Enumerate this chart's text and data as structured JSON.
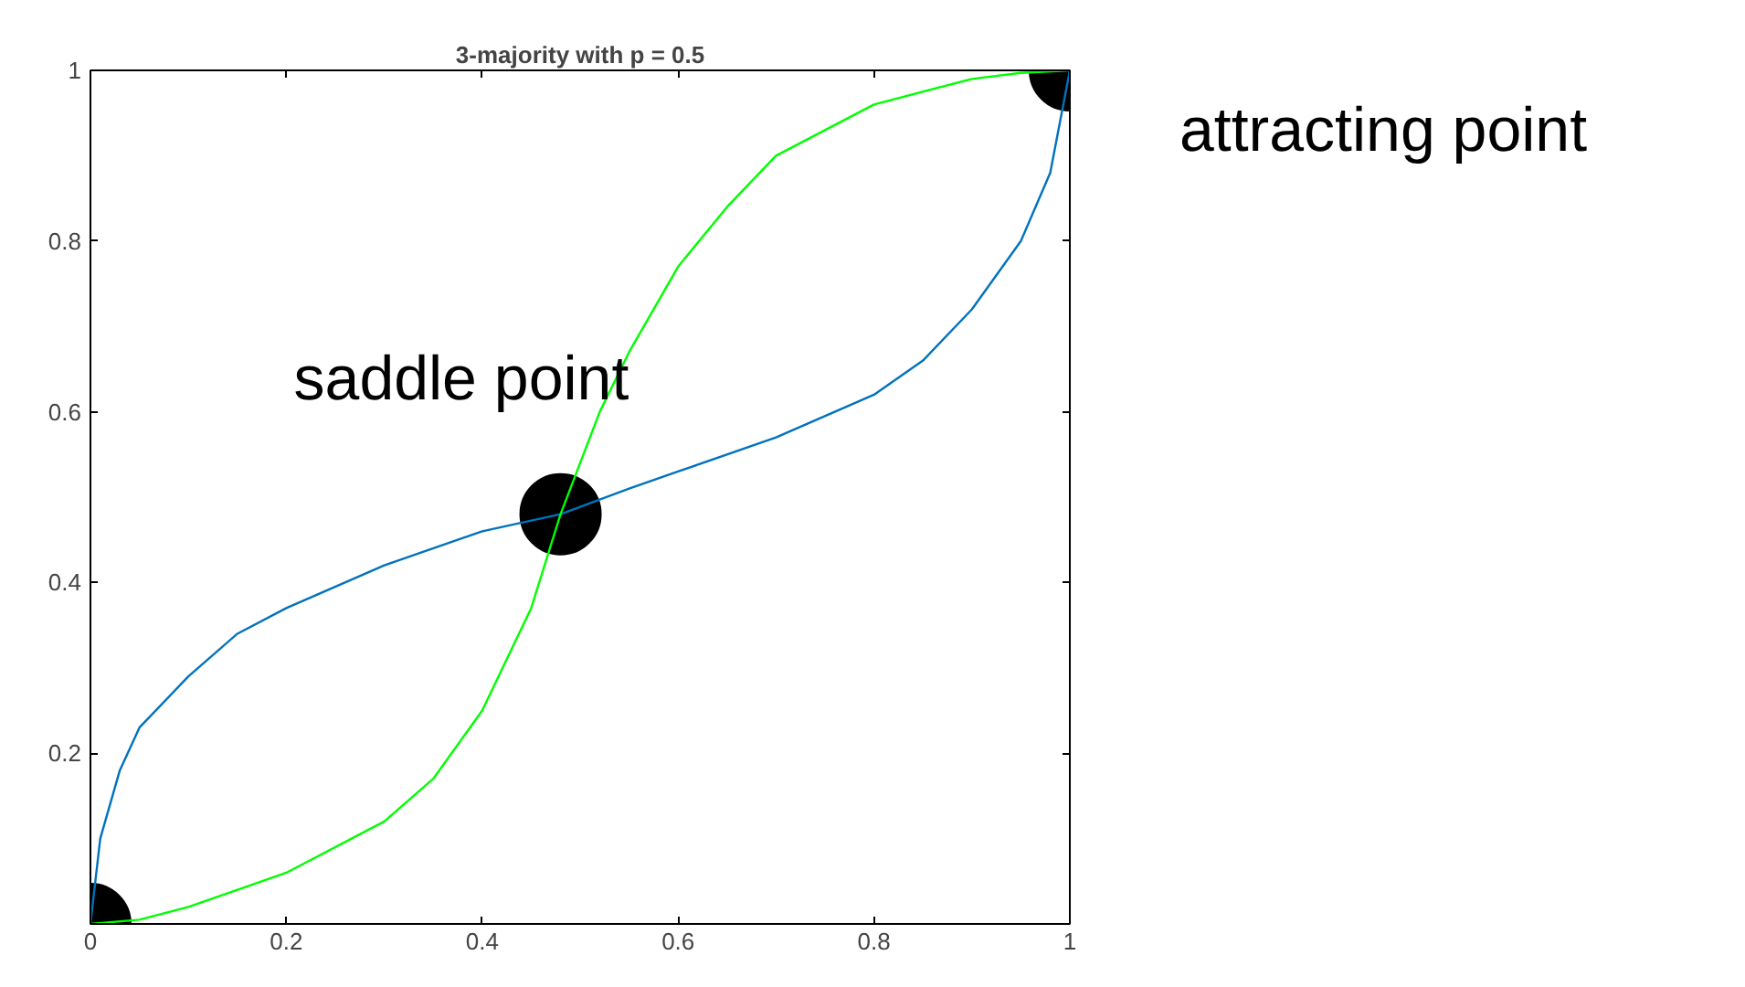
{
  "chart_data": {
    "type": "line",
    "title": "3-majority with p = 0.5",
    "xlim": [
      0,
      1
    ],
    "ylim": [
      0,
      1
    ],
    "xticks": [
      0,
      0.2,
      0.4,
      0.6,
      0.8,
      1
    ],
    "yticks": [
      {
        "value": 0,
        "label": null
      },
      0.2,
      0.4,
      0.6,
      0.8,
      1
    ],
    "grid": false,
    "series": [
      {
        "color": "#0072bd",
        "x": [
          0,
          0.01,
          0.03,
          0.05,
          0.1,
          0.15,
          0.2,
          0.3,
          0.4,
          0.48,
          0.55,
          0.6,
          0.7,
          0.8,
          0.85,
          0.9,
          0.95,
          0.98,
          1
        ],
        "values": [
          0,
          0.1,
          0.18,
          0.23,
          0.29,
          0.34,
          0.37,
          0.42,
          0.46,
          0.48,
          0.51,
          0.53,
          0.57,
          0.62,
          0.66,
          0.72,
          0.8,
          0.88,
          1
        ]
      },
      {
        "color": "#00ff00",
        "x": [
          0,
          0.05,
          0.1,
          0.2,
          0.3,
          0.35,
          0.4,
          0.45,
          0.48,
          0.52,
          0.55,
          0.6,
          0.65,
          0.7,
          0.8,
          0.9,
          0.95,
          1
        ],
        "values": [
          0,
          0.005,
          0.02,
          0.06,
          0.12,
          0.17,
          0.25,
          0.37,
          0.48,
          0.6,
          0.67,
          0.77,
          0.84,
          0.9,
          0.96,
          0.99,
          0.997,
          1
        ]
      },
      {
        "type": "scatter",
        "color": "#000000",
        "marker": "circle",
        "x": [
          0,
          1
        ],
        "values": [
          0,
          1
        ]
      },
      {
        "type": "scatter",
        "color": "#000000",
        "marker": "circle",
        "x": [
          0.48
        ],
        "values": [
          0.48
        ]
      }
    ],
    "annotations": [
      {
        "text": "saddle point",
        "x": 0.48,
        "y": 0.48
      },
      {
        "text": "attracting point",
        "x": 1,
        "y": 1
      }
    ]
  }
}
